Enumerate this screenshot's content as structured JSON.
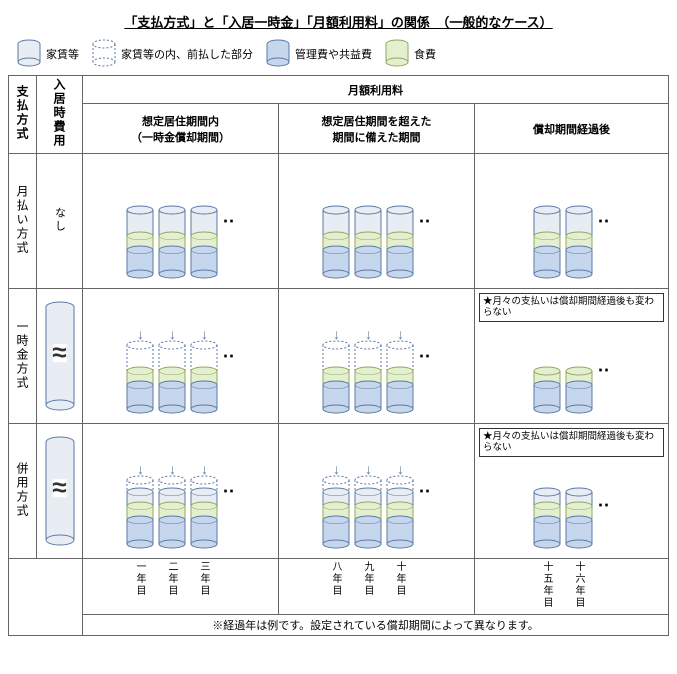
{
  "title": "「支払方式」と「入居一時金」「月額利用料」の関係　（一般的なケース）",
  "legend": {
    "rent": "家賃等",
    "prepaid": "家賃等の内、前払した部分",
    "mgmt": "管理費や共益費",
    "food": "食費"
  },
  "headers": {
    "method": "支払方式",
    "initial": "入居時費用",
    "monthly": "月額利用料",
    "col1_line1": "想定居住期間内",
    "col1_line2": "（一時金償却期間）",
    "col2_line1": "想定居住期間を超えた",
    "col2_line2": "期間に備えた期間",
    "col3": "償却期間経過後"
  },
  "rows": {
    "monthly": "月払い方式",
    "lump": "一時金方式",
    "combo": "併用方式",
    "none": "なし"
  },
  "note": "★月々の支払いは償却期間経過後も変わらない",
  "years": {
    "y1": "一年目",
    "y2": "二年目",
    "y3": "三年目",
    "y8": "八年目",
    "y9": "九年目",
    "y10": "十年目",
    "y15": "十五年目",
    "y16": "十六年目"
  },
  "footer": "※経過年は例です。設定されている償却期間によって異なります。",
  "colors": {
    "rent_fill": "#e8edf4",
    "rent_stroke": "#5b7aa6",
    "mgmt_fill": "#c5d6ed",
    "mgmt_stroke": "#5b7aa6",
    "food_fill": "#e3efce",
    "food_stroke": "#8fa85f",
    "dash_stroke": "#5b7aa6"
  },
  "cylinder": {
    "width": 28,
    "ellipse_ry": 4,
    "segment_heights": {
      "rent": 26,
      "food": 14,
      "mgmt": 24
    },
    "prepaid_heights": {
      "rent_lump": 26,
      "rent_combo": 12
    }
  }
}
